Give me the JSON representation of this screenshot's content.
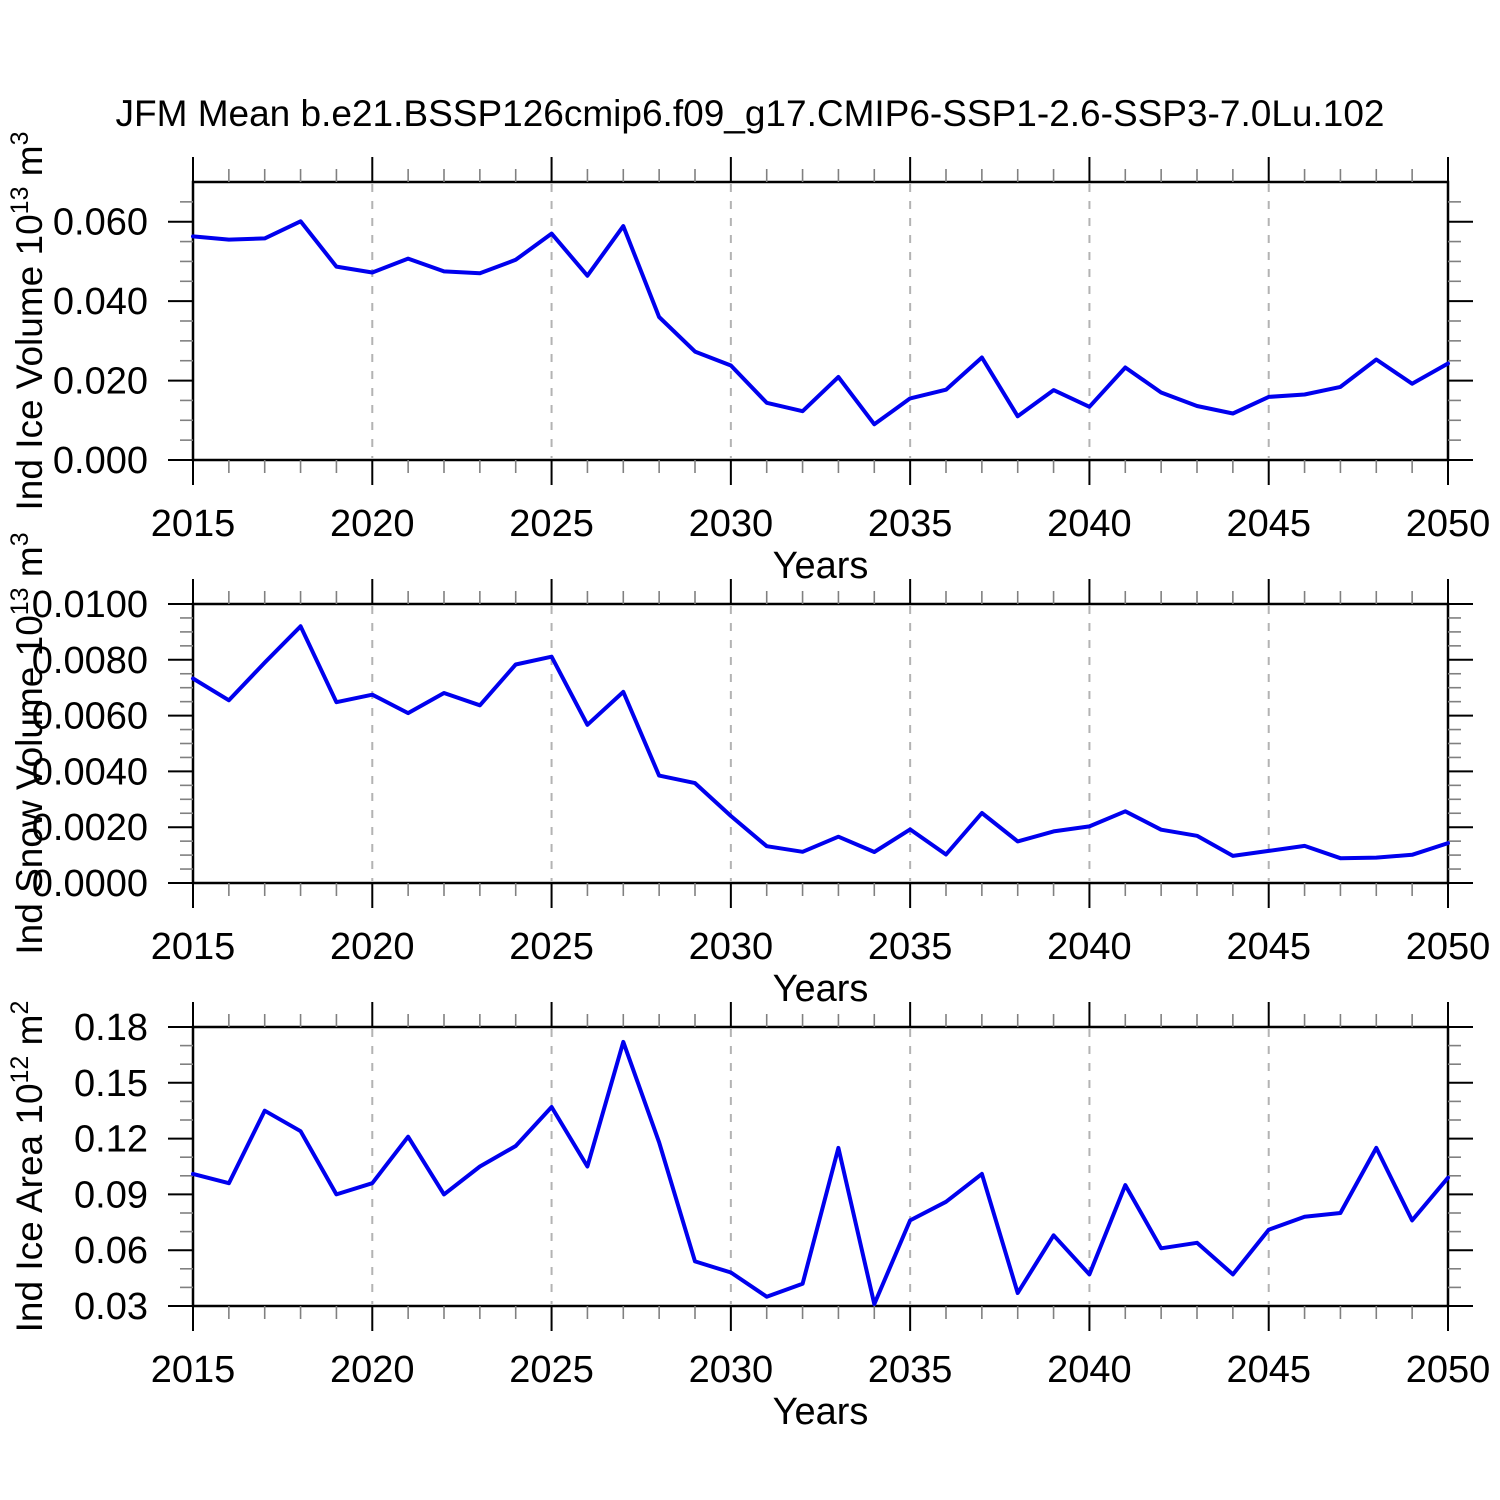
{
  "title": "JFM Mean b.e21.BSSP126cmip6.f09_g17.CMIP6-SSP1-2.6-SSP3-7.0Lu.102",
  "colors": {
    "line": "#0000ee",
    "grid": "#b3b3b3",
    "frame": "#000000",
    "minor_tick": "#808080",
    "text": "#000000"
  },
  "chart_data": [
    {
      "type": "line",
      "id": "ice-volume",
      "ylabel": {
        "pre": "Ind Ice Volume 10",
        "sup1": "13",
        "mid": " m",
        "sup2": "3"
      },
      "xlabel": "Years",
      "x": [
        2015,
        2016,
        2017,
        2018,
        2019,
        2020,
        2021,
        2022,
        2023,
        2024,
        2025,
        2026,
        2027,
        2028,
        2029,
        2030,
        2031,
        2032,
        2033,
        2034,
        2035,
        2036,
        2037,
        2038,
        2039,
        2040,
        2041,
        2042,
        2043,
        2044,
        2045,
        2046,
        2047,
        2048,
        2049,
        2050
      ],
      "values": [
        0.0563,
        0.0555,
        0.0558,
        0.0601,
        0.0487,
        0.0472,
        0.0507,
        0.0475,
        0.047,
        0.0504,
        0.057,
        0.0464,
        0.0589,
        0.036,
        0.0273,
        0.0238,
        0.0144,
        0.0123,
        0.0209,
        0.009,
        0.0155,
        0.0177,
        0.0258,
        0.011,
        0.0176,
        0.0134,
        0.0233,
        0.017,
        0.0136,
        0.0117,
        0.0159,
        0.0165,
        0.0184,
        0.0253,
        0.0192,
        0.0243
      ],
      "xlim": [
        2015,
        2050
      ],
      "ylim": [
        0.0,
        0.07
      ],
      "ytick_vals": [
        0.0,
        0.02,
        0.04,
        0.06
      ],
      "ytick_labels": [
        "0.000",
        "0.020",
        "0.040",
        "0.060"
      ],
      "y_minor_step": 0.005,
      "xtick_major_step": 5,
      "xtick_labels": [
        "2015",
        "2020",
        "2025",
        "2030",
        "2035",
        "2040",
        "2045",
        "2050"
      ],
      "grid_x": [
        2020,
        2025,
        2030,
        2035,
        2040,
        2045
      ],
      "grid_style": "vertical-dashed",
      "legend": "none"
    },
    {
      "type": "line",
      "id": "snow-volume",
      "ylabel": {
        "pre": "Ind Snow Volume 10",
        "sup1": "13",
        "mid": " m",
        "sup2": "3"
      },
      "xlabel": "Years",
      "x": [
        2015,
        2016,
        2017,
        2018,
        2019,
        2020,
        2021,
        2022,
        2023,
        2024,
        2025,
        2026,
        2027,
        2028,
        2029,
        2030,
        2031,
        2032,
        2033,
        2034,
        2035,
        2036,
        2037,
        2038,
        2039,
        2040,
        2041,
        2042,
        2043,
        2044,
        2045,
        2046,
        2047,
        2048,
        2049,
        2050
      ],
      "values": [
        0.00733,
        0.00655,
        0.0079,
        0.0092,
        0.00648,
        0.00675,
        0.00609,
        0.00681,
        0.00637,
        0.00783,
        0.00811,
        0.00567,
        0.00685,
        0.00385,
        0.00358,
        0.0024,
        0.00132,
        0.00112,
        0.00166,
        0.00111,
        0.00192,
        0.00102,
        0.00251,
        0.00149,
        0.00185,
        0.00203,
        0.00257,
        0.00191,
        0.00169,
        0.00097,
        0.00115,
        0.00133,
        0.00089,
        0.00091,
        0.00101,
        0.00143
      ],
      "xlim": [
        2015,
        2050
      ],
      "ylim": [
        0.0,
        0.01
      ],
      "ytick_vals": [
        0.0,
        0.002,
        0.004,
        0.006,
        0.008,
        0.01
      ],
      "ytick_labels": [
        "0.0000",
        "0.0020",
        "0.0040",
        "0.0060",
        "0.0080",
        "0.0100"
      ],
      "y_minor_step": 0.0005,
      "xtick_major_step": 5,
      "xtick_labels": [
        "2015",
        "2020",
        "2025",
        "2030",
        "2035",
        "2040",
        "2045",
        "2050"
      ],
      "grid_x": [
        2020,
        2025,
        2030,
        2035,
        2040,
        2045
      ],
      "grid_style": "vertical-dashed",
      "legend": "none"
    },
    {
      "type": "line",
      "id": "ice-area",
      "ylabel": {
        "pre": "Ind Ice Area 10",
        "sup1": "12",
        "mid": " m",
        "sup2": "2"
      },
      "xlabel": "Years",
      "x": [
        2015,
        2016,
        2017,
        2018,
        2019,
        2020,
        2021,
        2022,
        2023,
        2024,
        2025,
        2026,
        2027,
        2028,
        2029,
        2030,
        2031,
        2032,
        2033,
        2034,
        2035,
        2036,
        2037,
        2038,
        2039,
        2040,
        2041,
        2042,
        2043,
        2044,
        2045,
        2046,
        2047,
        2048,
        2049,
        2050
      ],
      "values": [
        0.101,
        0.096,
        0.135,
        0.124,
        0.09,
        0.096,
        0.121,
        0.09,
        0.105,
        0.116,
        0.137,
        0.105,
        0.172,
        0.118,
        0.054,
        0.048,
        0.035,
        0.042,
        0.115,
        0.031,
        0.076,
        0.086,
        0.101,
        0.037,
        0.068,
        0.047,
        0.095,
        0.061,
        0.064,
        0.047,
        0.071,
        0.078,
        0.08,
        0.115,
        0.076,
        0.099
      ],
      "xlim": [
        2015,
        2050
      ],
      "ylim": [
        0.03,
        0.18
      ],
      "ytick_vals": [
        0.03,
        0.06,
        0.09,
        0.12,
        0.15,
        0.18
      ],
      "ytick_labels": [
        "0.03",
        "0.06",
        "0.09",
        "0.12",
        "0.15",
        "0.18"
      ],
      "y_minor_step": 0.01,
      "xtick_major_step": 5,
      "xtick_labels": [
        "2015",
        "2020",
        "2025",
        "2030",
        "2035",
        "2040",
        "2045",
        "2050"
      ],
      "grid_x": [
        2020,
        2025,
        2030,
        2035,
        2040,
        2045
      ],
      "grid_style": "vertical-dashed",
      "legend": "none"
    }
  ]
}
